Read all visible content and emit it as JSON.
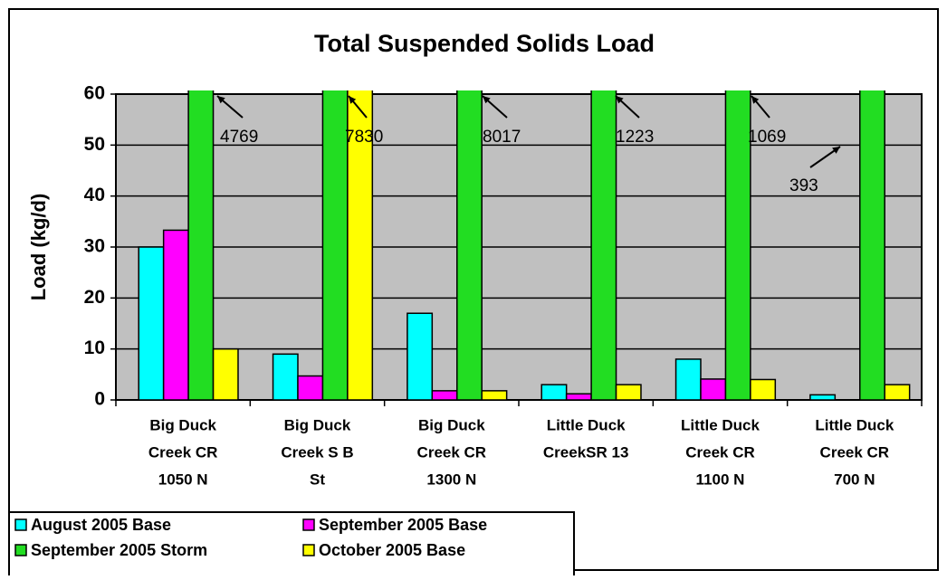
{
  "chart_data": {
    "type": "bar",
    "title": "Total Suspended Solids Load",
    "y_label": "Load (kg/d)",
    "categories": [
      [
        "Big Duck",
        "Creek CR",
        "1050 N"
      ],
      [
        "Big Duck",
        "Creek S B",
        "St"
      ],
      [
        "Big Duck",
        "Creek CR",
        "1300 N"
      ],
      [
        "Little Duck",
        "CreekSR 13"
      ],
      [
        "Little Duck",
        "Creek CR",
        "1100 N"
      ],
      [
        "Little Duck",
        "Creek CR",
        "700 N"
      ]
    ],
    "series": [
      {
        "name": "August 2005 Base",
        "color": "#00ffff",
        "values": [
          30,
          9,
          17,
          3,
          8,
          1
        ]
      },
      {
        "name": "September 2005 Base",
        "color": "#ff00ff",
        "values": [
          33.3,
          4.7,
          1.8,
          1.2,
          4.1,
          0
        ]
      },
      {
        "name": "September 2005 Storm",
        "color": "#22dd22",
        "values": [
          4769,
          7830,
          8017,
          1223,
          1069,
          393
        ]
      },
      {
        "name": "October 2005 Base",
        "color": "#ffff00",
        "values": [
          10,
          62,
          1.8,
          3,
          4,
          3
        ]
      }
    ],
    "labeled_series": 2,
    "ylim": [
      0,
      60
    ],
    "yticks": [
      0,
      10,
      20,
      30,
      40,
      50,
      60
    ],
    "grid": true,
    "legend": "bottom-left"
  }
}
